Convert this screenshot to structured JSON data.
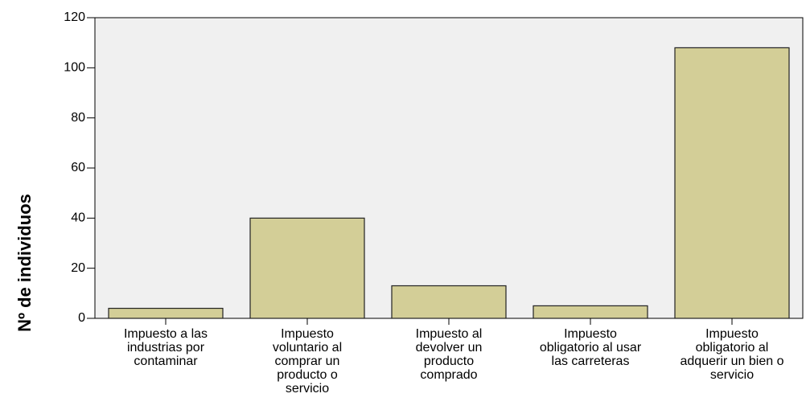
{
  "chart_data": {
    "type": "bar",
    "ylabel": "Nº de individuos",
    "categories": [
      [
        "Impuesto a las",
        "industrias por",
        "contaminar"
      ],
      [
        "Impuesto",
        "voluntario al",
        "comprar un",
        "producto o",
        "servicio"
      ],
      [
        "Impuesto al",
        "devolver un",
        "producto",
        "comprado"
      ],
      [
        "Impuesto",
        "obligatorio al usar",
        "las carreteras"
      ],
      [
        "Impuesto",
        "obligatorio al",
        "adquerir un bien o",
        "servicio"
      ]
    ],
    "values": [
      4,
      40,
      13,
      5,
      108
    ],
    "color": "#d3ce97",
    "ylim": [
      0,
      120
    ],
    "yticks": [
      0,
      20,
      40,
      60,
      80,
      100,
      120
    ]
  }
}
